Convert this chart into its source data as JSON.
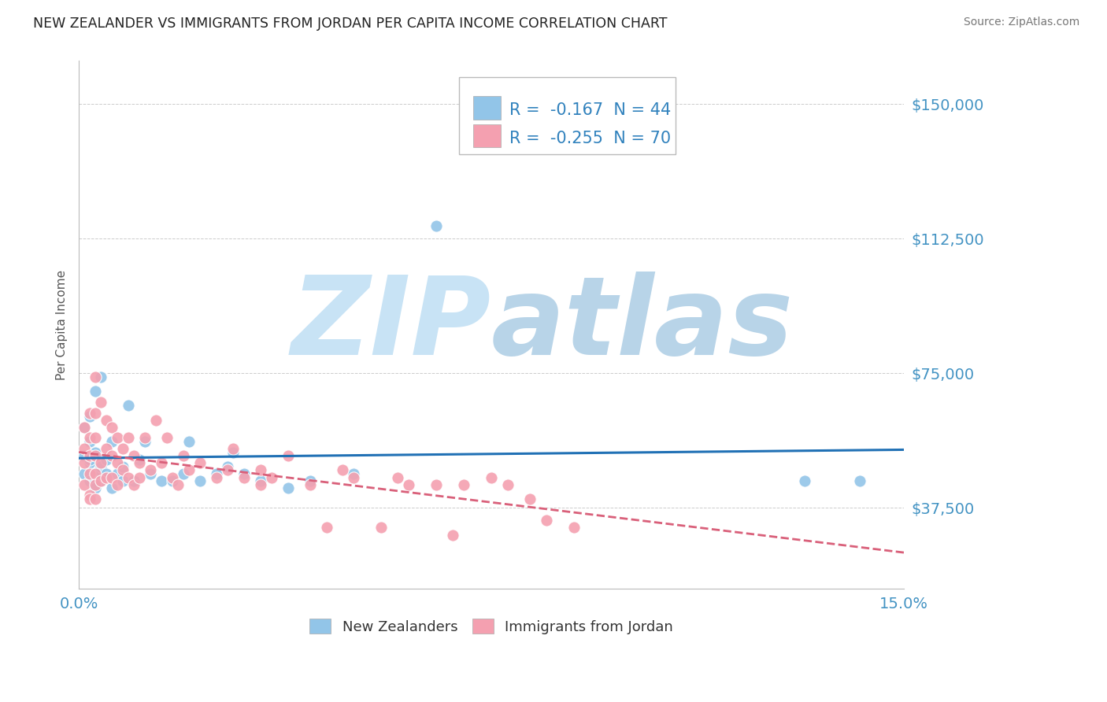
{
  "title": "NEW ZEALANDER VS IMMIGRANTS FROM JORDAN PER CAPITA INCOME CORRELATION CHART",
  "source_text": "Source: ZipAtlas.com",
  "ylabel": "Per Capita Income",
  "xlim": [
    0.0,
    0.15
  ],
  "ylim": [
    15000,
    162000
  ],
  "yticks": [
    37500,
    75000,
    112500,
    150000
  ],
  "xticks": [
    0.0,
    0.015,
    0.03,
    0.045,
    0.06,
    0.075,
    0.09,
    0.105,
    0.12,
    0.135,
    0.15
  ],
  "background_color": "#ffffff",
  "blue_scatter": "#92c5e8",
  "blue_line": "#2171b5",
  "pink_scatter": "#f4a0b0",
  "pink_line": "#d9607a",
  "grid_color": "#cccccc",
  "axis_tick_color": "#4393c3",
  "legend_label1": "New Zealanders",
  "legend_label2": "Immigrants from Jordan",
  "legend_R1": "R = ",
  "legend_V1": "-0.167",
  "legend_N1": "N = 44",
  "legend_R2": "R = ",
  "legend_V2": "-0.255",
  "legend_N2": "N = 70",
  "nz_x": [
    0.001,
    0.001,
    0.001,
    0.002,
    0.002,
    0.002,
    0.002,
    0.002,
    0.003,
    0.003,
    0.003,
    0.003,
    0.003,
    0.004,
    0.004,
    0.004,
    0.005,
    0.005,
    0.006,
    0.007,
    0.008,
    0.008,
    0.009,
    0.01,
    0.011,
    0.012,
    0.013,
    0.015,
    0.017,
    0.019,
    0.02,
    0.022,
    0.025,
    0.027,
    0.028,
    0.03,
    0.033,
    0.038,
    0.042,
    0.05,
    0.065,
    0.132,
    0.142,
    0.006
  ],
  "nz_y": [
    60000,
    52000,
    47000,
    50000,
    56000,
    63000,
    51000,
    45000,
    47000,
    53000,
    70000,
    45000,
    43000,
    49000,
    74000,
    45000,
    47000,
    51000,
    56000,
    47000,
    45000,
    49000,
    66000,
    45000,
    51000,
    56000,
    47000,
    45000,
    45000,
    47000,
    56000,
    45000,
    47000,
    49000,
    53000,
    47000,
    45000,
    43000,
    45000,
    47000,
    116000,
    45000,
    45000,
    43000
  ],
  "jd_x": [
    0.001,
    0.001,
    0.001,
    0.001,
    0.002,
    0.002,
    0.002,
    0.002,
    0.002,
    0.002,
    0.003,
    0.003,
    0.003,
    0.003,
    0.003,
    0.003,
    0.004,
    0.004,
    0.004,
    0.005,
    0.005,
    0.005,
    0.006,
    0.006,
    0.006,
    0.007,
    0.007,
    0.007,
    0.008,
    0.008,
    0.009,
    0.009,
    0.01,
    0.01,
    0.011,
    0.011,
    0.012,
    0.013,
    0.014,
    0.015,
    0.016,
    0.017,
    0.018,
    0.019,
    0.02,
    0.022,
    0.025,
    0.027,
    0.028,
    0.03,
    0.033,
    0.033,
    0.035,
    0.038,
    0.042,
    0.045,
    0.048,
    0.05,
    0.055,
    0.058,
    0.06,
    0.065,
    0.068,
    0.07,
    0.075,
    0.078,
    0.082,
    0.085,
    0.09,
    0.003
  ],
  "jd_y": [
    60000,
    54000,
    50000,
    44000,
    64000,
    57000,
    52000,
    47000,
    41000,
    40000,
    74000,
    64000,
    57000,
    52000,
    47000,
    44000,
    67000,
    50000,
    45000,
    62000,
    54000,
    46000,
    60000,
    52000,
    46000,
    57000,
    50000,
    44000,
    54000,
    48000,
    57000,
    46000,
    52000,
    44000,
    50000,
    46000,
    57000,
    48000,
    62000,
    50000,
    57000,
    46000,
    44000,
    52000,
    48000,
    50000,
    46000,
    48000,
    54000,
    46000,
    44000,
    48000,
    46000,
    52000,
    44000,
    32000,
    48000,
    46000,
    32000,
    46000,
    44000,
    44000,
    30000,
    44000,
    46000,
    44000,
    40000,
    34000,
    32000,
    40000
  ]
}
